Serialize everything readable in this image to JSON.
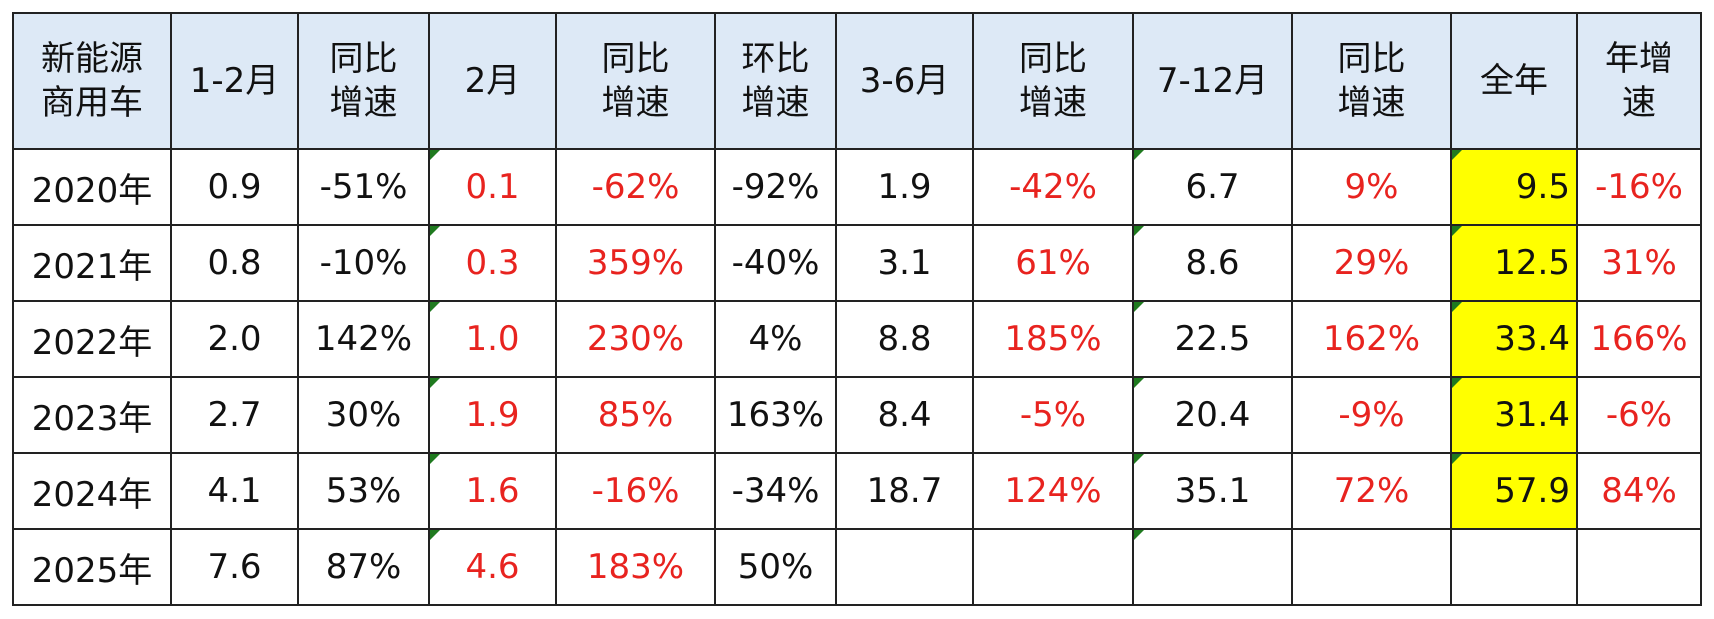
{
  "table": {
    "header": [
      [
        "新能源",
        "商用车"
      ],
      [
        "1-2月"
      ],
      [
        "同比",
        "增速"
      ],
      [
        "2月"
      ],
      [
        "同比",
        "增速"
      ],
      [
        "环比",
        "增速"
      ],
      [
        "3-6月"
      ],
      [
        "同比",
        "增速"
      ],
      [
        "7-12月"
      ],
      [
        "同比",
        "增速"
      ],
      [
        "全年"
      ],
      [
        "年增",
        "速"
      ]
    ],
    "rows": [
      [
        "2020年",
        "0.9",
        "-51%",
        "0.1",
        "-62%",
        "-92%",
        "1.9",
        "-42%",
        "6.7",
        "9%",
        "9.5",
        "-16%"
      ],
      [
        "2021年",
        "0.8",
        "-10%",
        "0.3",
        "359%",
        "-40%",
        "3.1",
        "61%",
        "8.6",
        "29%",
        "12.5",
        "31%"
      ],
      [
        "2022年",
        "2.0",
        "142%",
        "1.0",
        "230%",
        "4%",
        "8.8",
        "185%",
        "22.5",
        "162%",
        "33.4",
        "166%"
      ],
      [
        "2023年",
        "2.7",
        "30%",
        "1.9",
        "85%",
        "163%",
        "8.4",
        "-5%",
        "20.4",
        "-9%",
        "31.4",
        "-6%"
      ],
      [
        "2024年",
        "4.1",
        "53%",
        "1.6",
        "-16%",
        "-34%",
        "18.7",
        "124%",
        "35.1",
        "72%",
        "57.9",
        "84%"
      ],
      [
        "2025年",
        "7.6",
        "87%",
        "4.6",
        "183%",
        "50%",
        null,
        null,
        null,
        null,
        null,
        null
      ]
    ]
  }
}
